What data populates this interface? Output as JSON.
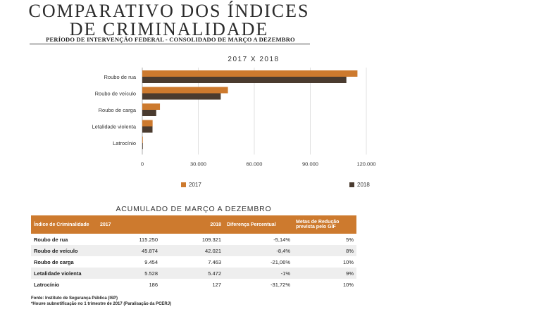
{
  "header": {
    "title_line1": "COMPARATIVO DOS ÍNDICES",
    "title_line2": "DE CRIMINALIDADE",
    "subtitle": "PERÍODO DE INTERVENÇÃO FEDERAL - CONSOLIDADO DE MARÇO A DEZEMBRO"
  },
  "chart_data": {
    "type": "bar",
    "orientation": "horizontal",
    "title": "2017 X 2018",
    "categories": [
      "Roubo de rua",
      "Roubo de veículo",
      "Roubo de carga",
      "Letalidade violenta",
      "Latrocínio"
    ],
    "series": [
      {
        "name": "2017",
        "values": [
          115250,
          45874,
          9454,
          5528,
          186
        ],
        "color": "#cd7a2e"
      },
      {
        "name": "2018",
        "values": [
          109321,
          42021,
          7463,
          5472,
          127
        ],
        "color": "#4a3b2f"
      }
    ],
    "xlim": [
      0,
      120000
    ],
    "xticks": [
      "0",
      "30.000",
      "60.000",
      "90.000",
      "120.000"
    ],
    "tick_values": [
      0,
      30000,
      60000,
      90000,
      120000
    ],
    "grid": true
  },
  "legend": {
    "items": [
      {
        "label": "2017",
        "color": "#cd7a2e"
      },
      {
        "label": "2018",
        "color": "#4a3b2f"
      }
    ]
  },
  "table": {
    "title": "ACUMULADO DE MARÇO A DEZEMBRO",
    "headers": [
      "Índice de Criminalidade",
      "2017",
      "2018",
      "Diferença Percentual",
      "Metas de Redução prevista pelo GIF"
    ],
    "rows": [
      [
        "Roubo de rua",
        "115.250",
        "109.321",
        "-5,14%",
        "5%"
      ],
      [
        "Roubo de veículo",
        "45.874",
        "42.021",
        "-8,4%",
        "8%"
      ],
      [
        "Roubo de carga",
        "9.454",
        "7.463",
        "-21,06%",
        "10%"
      ],
      [
        "Letalidade violenta",
        "5.528",
        "5.472",
        "-1%",
        "9%"
      ],
      [
        "Latrocínio",
        "186",
        "127",
        "-31,72%",
        "10%"
      ]
    ]
  },
  "footer": {
    "source": "Fonte: Instituto de Segurança Pública (ISP)",
    "note": "*Houve subnotificação no 1 trimestre de 2017  (Paralisação da PCERJ)"
  }
}
